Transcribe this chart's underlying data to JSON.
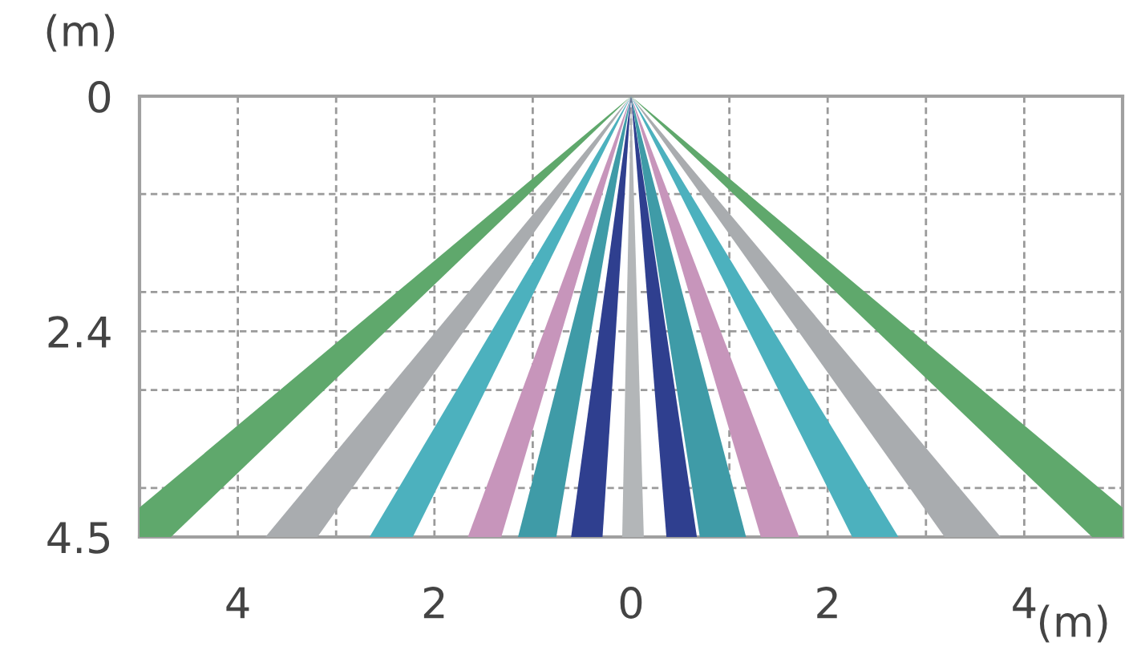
{
  "chart_data": {
    "type": "area",
    "xlabel": "(m)",
    "ylabel": "(m)",
    "xlim": [
      -5,
      5
    ],
    "ylim": [
      4.5,
      0
    ],
    "xticks": [
      {
        "value": -5,
        "label": null
      },
      {
        "value": -4,
        "label": "4"
      },
      {
        "value": -3,
        "label": null
      },
      {
        "value": -2,
        "label": "2"
      },
      {
        "value": -1,
        "label": null
      },
      0,
      {
        "value": 1,
        "label": null
      },
      2,
      {
        "value": 3,
        "label": null
      },
      4,
      {
        "value": 5,
        "label": null
      }
    ],
    "yticks": [
      0,
      {
        "value": 1,
        "label": null
      },
      {
        "value": 2,
        "label": null
      },
      2.4,
      {
        "value": 3,
        "label": null
      },
      {
        "value": 4,
        "label": null
      },
      4.5
    ],
    "grid": true,
    "legend": false,
    "series": [
      {
        "color": "#5fa86c",
        "x": [
          0,
          -5,
          -5,
          -4.68
        ],
        "values": [
          0,
          4.2,
          4.5,
          4.5
        ]
      },
      {
        "color": "#a9acaf",
        "x": [
          0,
          -3.72,
          -3.19
        ],
        "values": [
          0,
          4.5,
          4.5
        ]
      },
      {
        "color": "#4cb1be",
        "x": [
          0,
          -2.66,
          -2.22
        ],
        "values": [
          0,
          4.5,
          4.5
        ]
      },
      {
        "color": "#c795bb",
        "x": [
          0,
          -1.66,
          -1.32
        ],
        "values": [
          0,
          4.5,
          4.5
        ]
      },
      {
        "color": "#3f9ba7",
        "x": [
          0,
          -1.15,
          -0.76
        ],
        "values": [
          0,
          4.5,
          4.5
        ]
      },
      {
        "color": "#2f3f8f",
        "x": [
          0,
          -0.61,
          -0.29
        ],
        "values": [
          0,
          4.5,
          4.5
        ]
      },
      {
        "color": "#b3b6b8",
        "x": [
          0,
          -0.09,
          0.13
        ],
        "values": [
          0,
          4.5,
          4.5
        ]
      },
      {
        "color": "#2f3f8f",
        "x": [
          0,
          0.36,
          0.67
        ],
        "values": [
          0,
          4.5,
          4.5
        ]
      },
      {
        "color": "#3f9ba7",
        "x": [
          0,
          0.7,
          1.17
        ],
        "values": [
          0,
          4.5,
          4.5
        ]
      },
      {
        "color": "#c795bb",
        "x": [
          0,
          1.32,
          1.71
        ],
        "values": [
          0,
          4.5,
          4.5
        ]
      },
      {
        "color": "#4cb1be",
        "x": [
          0,
          2.25,
          2.72
        ],
        "values": [
          0,
          4.5,
          4.5
        ]
      },
      {
        "color": "#a9acaf",
        "x": [
          0,
          3.19,
          3.76
        ],
        "values": [
          0,
          4.5,
          4.5
        ]
      },
      {
        "color": "#5fa86c",
        "x": [
          0,
          4.69,
          5,
          5
        ],
        "values": [
          0,
          4.5,
          4.5,
          4.2
        ]
      }
    ]
  }
}
